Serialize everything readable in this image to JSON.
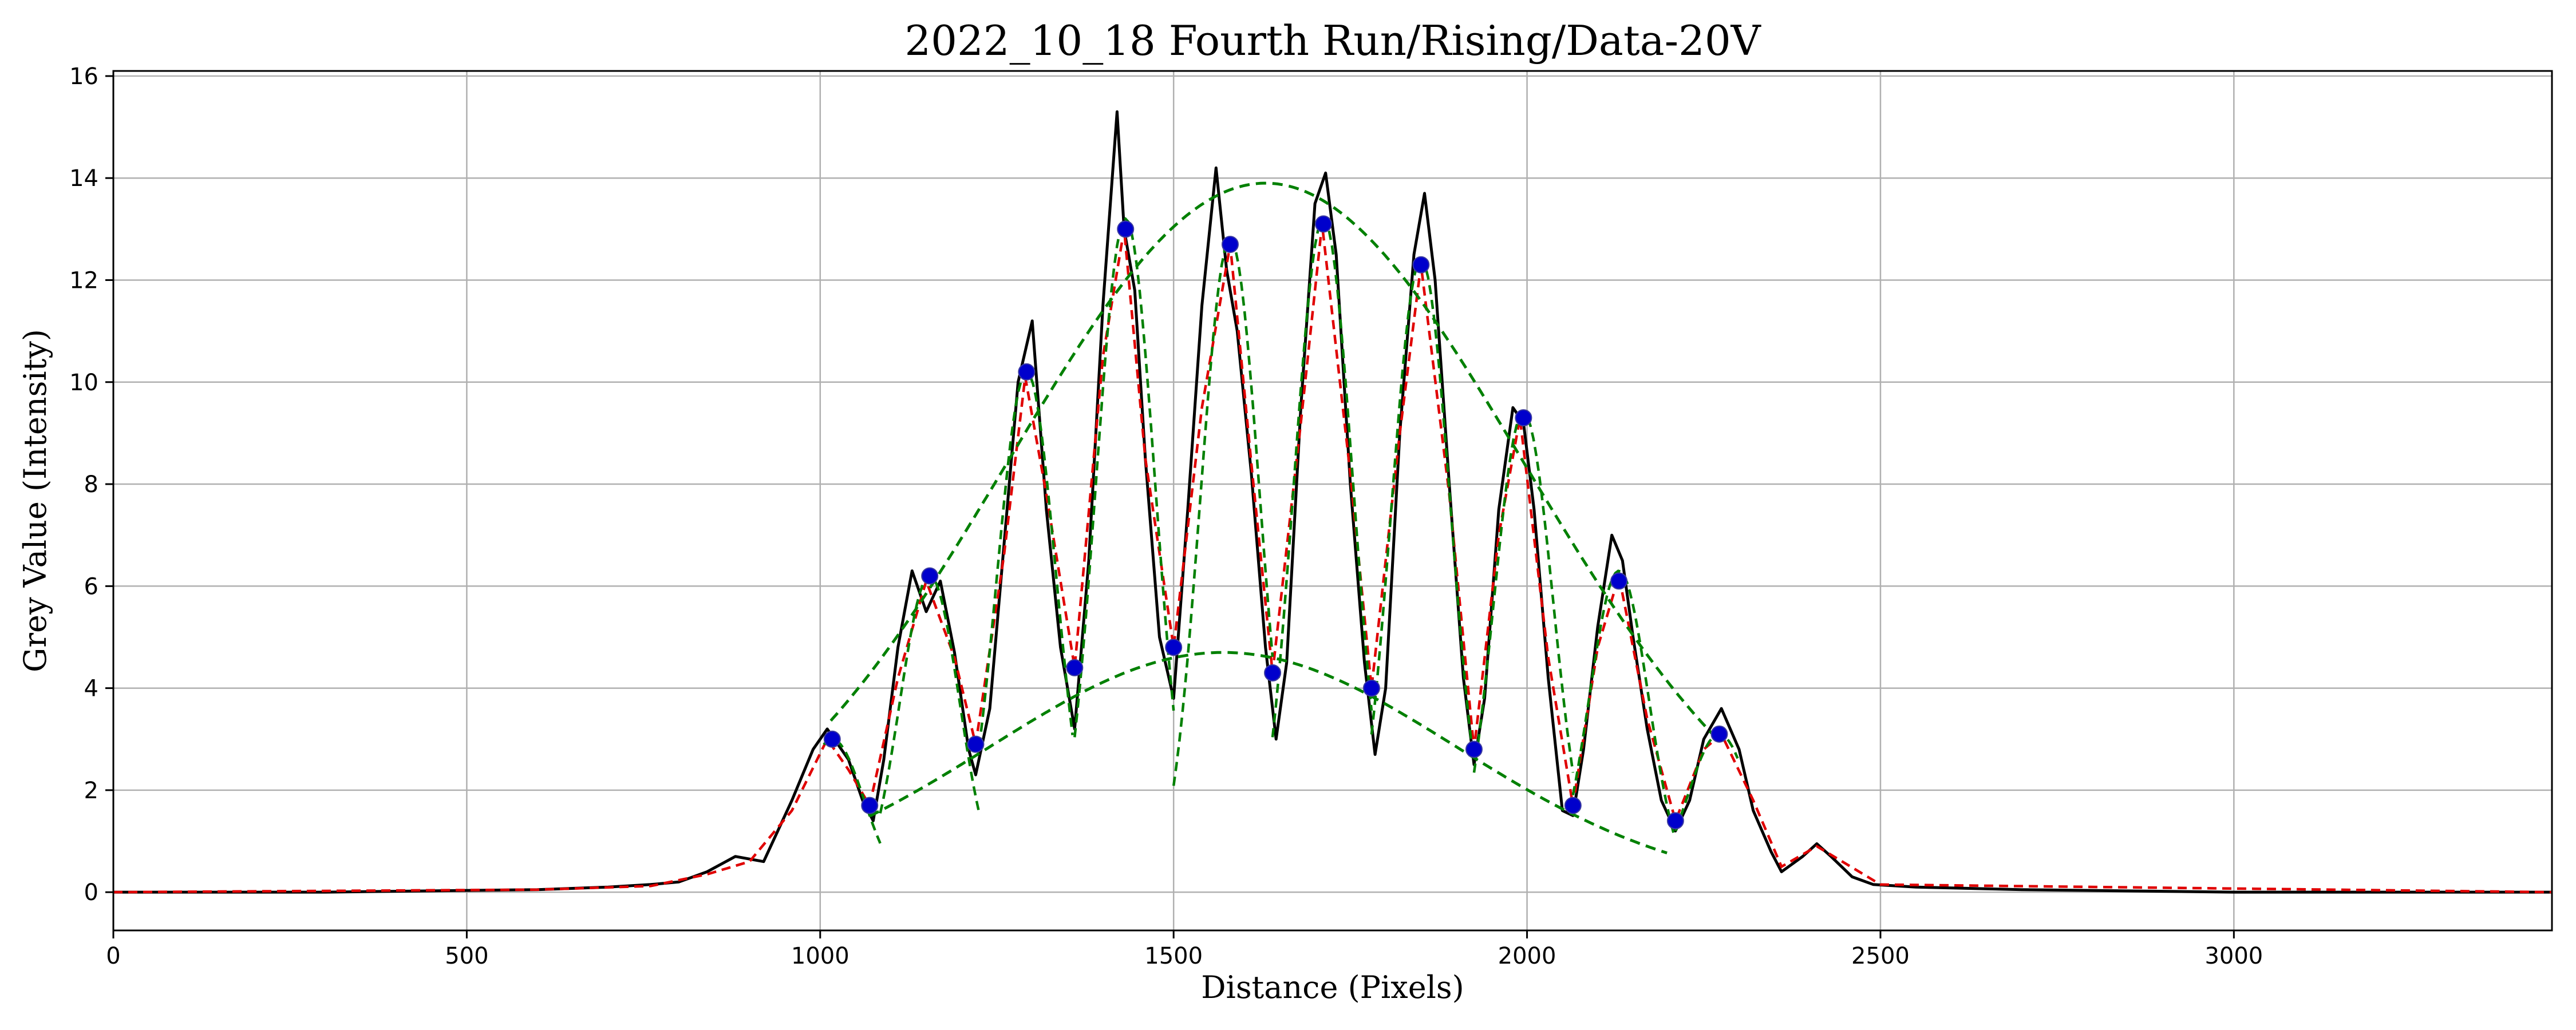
{
  "chart_data": {
    "type": "line",
    "title": "2022_10_18 Fourth Run/Rising/Data-20V",
    "xlabel": "Distance (Pixels)",
    "ylabel": "Grey Value (Intensity)",
    "xlim": [
      0,
      3450
    ],
    "ylim": [
      -0.75,
      16.1
    ],
    "xticks": [
      0,
      500,
      1000,
      1500,
      2000,
      2500,
      3000
    ],
    "yticks": [
      0,
      2,
      4,
      6,
      8,
      10,
      12,
      14,
      16
    ],
    "grid": true,
    "legend": "none",
    "colors": {
      "raw": "#000000",
      "smoothed": "#e00000",
      "fit": "#008000",
      "markers": "#0000cc",
      "grid": "#b0b0b0"
    },
    "series": [
      {
        "style": "raw-solid-black",
        "x": [
          0,
          300,
          600,
          700,
          760,
          800,
          840,
          880,
          920,
          960,
          990,
          1010,
          1040,
          1060,
          1075,
          1090,
          1110,
          1130,
          1150,
          1170,
          1190,
          1210,
          1220,
          1240,
          1260,
          1280,
          1300,
          1320,
          1340,
          1360,
          1380,
          1400,
          1420,
          1430,
          1445,
          1460,
          1480,
          1500,
          1520,
          1540,
          1560,
          1575,
          1590,
          1610,
          1630,
          1645,
          1660,
          1680,
          1700,
          1715,
          1730,
          1750,
          1770,
          1785,
          1800,
          1820,
          1840,
          1855,
          1870,
          1890,
          1910,
          1925,
          1940,
          1960,
          1980,
          1995,
          2010,
          2030,
          2050,
          2065,
          2080,
          2100,
          2120,
          2135,
          2150,
          2170,
          2190,
          2210,
          2230,
          2250,
          2275,
          2300,
          2320,
          2345,
          2360,
          2390,
          2410,
          2430,
          2460,
          2490,
          2550,
          2700,
          3000,
          3450
        ],
        "y": [
          0.0,
          0.0,
          0.05,
          0.1,
          0.15,
          0.2,
          0.4,
          0.7,
          0.6,
          1.8,
          2.8,
          3.2,
          2.6,
          1.8,
          1.4,
          2.6,
          4.8,
          6.3,
          5.5,
          6.1,
          4.7,
          2.8,
          2.3,
          3.6,
          6.8,
          10.0,
          11.2,
          7.5,
          4.8,
          3.2,
          6.5,
          11.5,
          15.3,
          13.0,
          11.8,
          8.5,
          5.0,
          3.8,
          7.5,
          11.5,
          14.2,
          12.2,
          11.0,
          8.2,
          4.8,
          3.0,
          4.5,
          9.5,
          13.5,
          14.1,
          12.5,
          8.0,
          4.5,
          2.7,
          4.0,
          9.0,
          12.5,
          13.7,
          12.0,
          8.0,
          4.2,
          2.5,
          3.8,
          7.5,
          9.5,
          9.2,
          7.5,
          4.2,
          1.6,
          1.5,
          2.8,
          5.2,
          7.0,
          6.5,
          5.0,
          3.2,
          1.8,
          1.2,
          1.8,
          3.0,
          3.6,
          2.8,
          1.6,
          0.8,
          0.4,
          0.7,
          0.95,
          0.7,
          0.3,
          0.15,
          0.1,
          0.05,
          0.0,
          0.0
        ]
      },
      {
        "style": "smoothed-dashed-red",
        "x": [
          0,
          600,
          760,
          840,
          900,
          960,
          1010,
          1040,
          1070,
          1110,
          1150,
          1190,
          1220,
          1260,
          1290,
          1320,
          1360,
          1400,
          1430,
          1460,
          1500,
          1540,
          1580,
          1610,
          1640,
          1680,
          1710,
          1750,
          1780,
          1820,
          1850,
          1890,
          1925,
          1960,
          1990,
          2030,
          2065,
          2100,
          2130,
          2170,
          2210,
          2250,
          2275,
          2320,
          2360,
          2410,
          2500,
          3450
        ],
        "y": [
          0.0,
          0.05,
          0.12,
          0.35,
          0.6,
          1.6,
          3.0,
          2.4,
          1.7,
          4.2,
          6.1,
          4.6,
          2.9,
          6.6,
          10.1,
          7.8,
          4.4,
          10.5,
          13.0,
          8.5,
          4.8,
          9.5,
          12.7,
          8.4,
          4.3,
          9.2,
          13.1,
          8.2,
          4.0,
          9.0,
          12.3,
          7.8,
          2.8,
          7.0,
          9.3,
          4.6,
          1.7,
          4.8,
          6.2,
          3.4,
          1.4,
          2.8,
          3.1,
          1.8,
          0.5,
          0.9,
          0.15,
          0.0
        ]
      }
    ],
    "envelopes": [
      {
        "style": "upper-gaussian-dashed-green",
        "x_range": [
          1015,
          2265
        ],
        "amplitude": 13.9,
        "center": 1630,
        "sigma": 365
      },
      {
        "style": "lower-gaussian-dashed-green",
        "x_range": [
          1070,
          2200
        ],
        "amplitude": 4.7,
        "center": 1570,
        "sigma": 330
      }
    ],
    "fringe_fits": [
      {
        "x_range": [
          1005,
          1085
        ],
        "center": 1017,
        "amplitude": 3.0,
        "sigma": 45,
        "baseline": 0.0
      },
      {
        "x_range": [
          1085,
          1225
        ],
        "center": 1155,
        "amplitude": 6.2,
        "sigma": 42,
        "baseline": 0.0
      },
      {
        "x_range": [
          1225,
          1360
        ],
        "center": 1292,
        "amplitude": 10.2,
        "sigma": 42,
        "baseline": 0.0
      },
      {
        "x_range": [
          1360,
          1500
        ],
        "center": 1432,
        "amplitude": 13.2,
        "sigma": 42,
        "baseline": 0.0
      },
      {
        "x_range": [
          1500,
          1640
        ],
        "center": 1580,
        "amplitude": 12.8,
        "sigma": 42,
        "baseline": 0.0
      },
      {
        "x_range": [
          1640,
          1780
        ],
        "center": 1712,
        "amplitude": 13.2,
        "sigma": 42,
        "baseline": 0.0
      },
      {
        "x_range": [
          1780,
          1925
        ],
        "center": 1850,
        "amplitude": 12.4,
        "sigma": 42,
        "baseline": 0.0
      },
      {
        "x_range": [
          1925,
          2065
        ],
        "center": 1995,
        "amplitude": 9.4,
        "sigma": 42,
        "baseline": 0.0
      },
      {
        "x_range": [
          2065,
          2210
        ],
        "center": 2130,
        "amplitude": 6.3,
        "sigma": 42,
        "baseline": 0.0
      },
      {
        "x_range": [
          2210,
          2300
        ],
        "center": 2272,
        "amplitude": 3.1,
        "sigma": 45,
        "baseline": 0.0
      }
    ],
    "markers": {
      "style": "extrema-points-blue",
      "x": [
        1017,
        1070,
        1155,
        1220,
        1292,
        1360,
        1432,
        1500,
        1580,
        1640,
        1712,
        1780,
        1850,
        1925,
        1995,
        2065,
        2130,
        2210,
        2272
      ],
      "y": [
        3.0,
        1.7,
        6.2,
        2.9,
        10.2,
        4.4,
        13.0,
        4.8,
        12.7,
        4.3,
        13.1,
        4.0,
        12.3,
        2.8,
        9.3,
        1.7,
        6.1,
        1.4,
        3.1
      ]
    }
  }
}
